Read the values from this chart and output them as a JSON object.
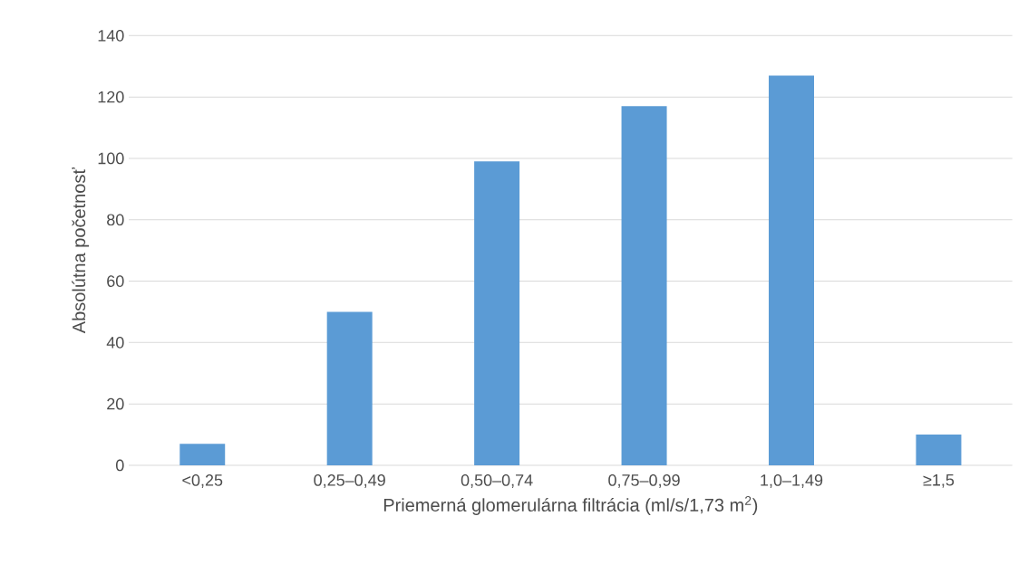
{
  "chart_data": {
    "type": "bar",
    "xlabel": "Priemerná glomerulárna filtrácia (ml/s/1,73 m$^{2}$)",
    "ylabel": "Absolútna početnosť",
    "categories": [
      "<0,25",
      "0,25–0,49",
      "0,50–0,74",
      "0,75–0,99",
      "1,0–1,49",
      "≥1,5"
    ],
    "values": [
      7,
      50,
      99,
      117,
      127,
      10
    ],
    "color": "#5b9bd5",
    "ylim": [
      0,
      140
    ],
    "yticks": [
      0,
      20,
      40,
      60,
      80,
      100,
      120,
      140
    ],
    "grid": "y"
  }
}
